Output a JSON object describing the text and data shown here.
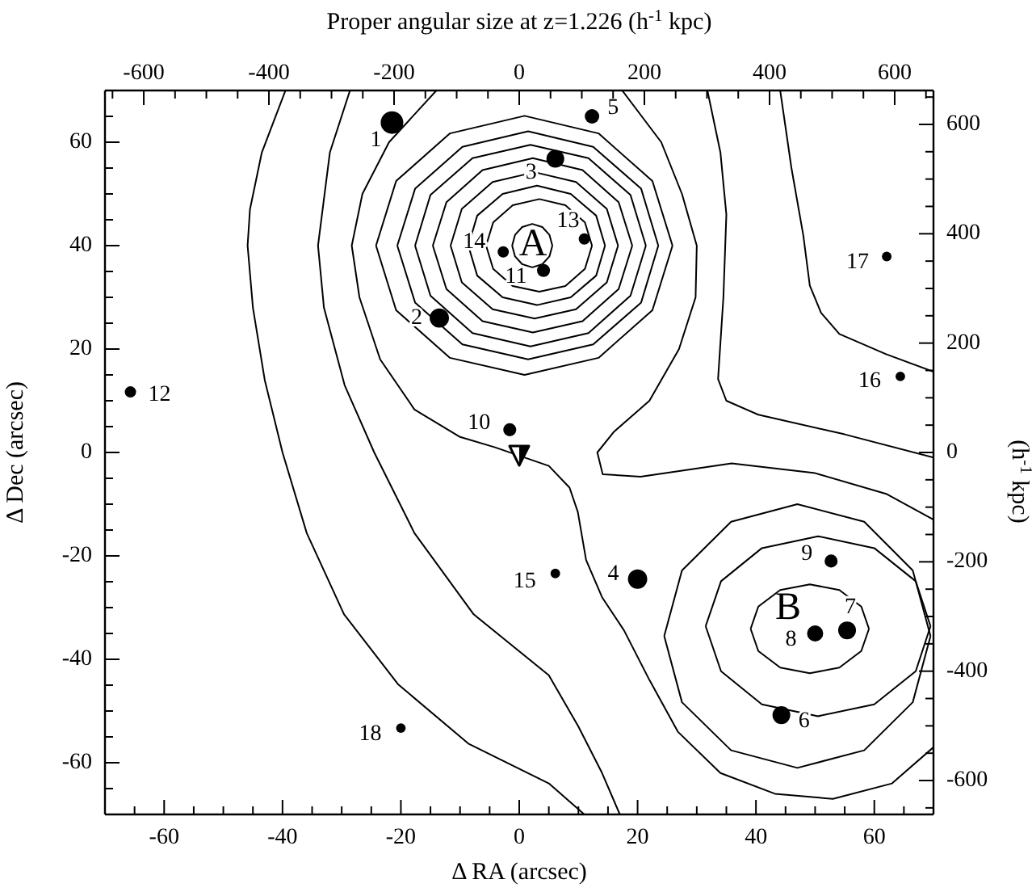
{
  "chart_data": {
    "type": "bubble",
    "xlabel": "Δ RA (arcsec)",
    "ylabel": "Δ Dec (arcsec)",
    "x2label": "Proper angular size at z=1.226 (h$^{-1}$ kpc)",
    "y2label": "(h$^{-1}$ kpc)",
    "xlim": [
      -70,
      70
    ],
    "ylim": [
      -70,
      70
    ],
    "x2lim": [
      -662,
      662
    ],
    "y2lim": [
      -662,
      662
    ],
    "xticks": [
      {
        "value": -65,
        "label": null
      },
      -60,
      {
        "value": -55,
        "label": null
      },
      {
        "value": -50,
        "label": null
      },
      {
        "value": -45,
        "label": null
      },
      -40,
      {
        "value": -35,
        "label": null
      },
      {
        "value": -30,
        "label": null
      },
      {
        "value": -25,
        "label": null
      },
      -20,
      {
        "value": -15,
        "label": null
      },
      {
        "value": -10,
        "label": null
      },
      {
        "value": -5,
        "label": null
      },
      0,
      {
        "value": 5,
        "label": null
      },
      {
        "value": 10,
        "label": null
      },
      {
        "value": 15,
        "label": null
      },
      20,
      {
        "value": 25,
        "label": null
      },
      {
        "value": 30,
        "label": null
      },
      {
        "value": 35,
        "label": null
      },
      40,
      {
        "value": 45,
        "label": null
      },
      {
        "value": 50,
        "label": null
      },
      {
        "value": 55,
        "label": null
      },
      60,
      {
        "value": 65,
        "label": null
      }
    ],
    "yticks": [
      {
        "value": -65,
        "label": null
      },
      -60,
      {
        "value": -55,
        "label": null
      },
      {
        "value": -50,
        "label": null
      },
      {
        "value": -45,
        "label": null
      },
      -40,
      {
        "value": -35,
        "label": null
      },
      {
        "value": -30,
        "label": null
      },
      {
        "value": -25,
        "label": null
      },
      -20,
      {
        "value": -15,
        "label": null
      },
      {
        "value": -10,
        "label": null
      },
      {
        "value": -5,
        "label": null
      },
      0,
      {
        "value": 5,
        "label": null
      },
      {
        "value": 10,
        "label": null
      },
      {
        "value": 15,
        "label": null
      },
      20,
      {
        "value": 25,
        "label": null
      },
      {
        "value": 30,
        "label": null
      },
      {
        "value": 35,
        "label": null
      },
      40,
      {
        "value": 45,
        "label": null
      },
      {
        "value": 50,
        "label": null
      },
      {
        "value": 55,
        "label": null
      },
      60,
      {
        "value": 65,
        "label": null
      }
    ],
    "x2ticks": [
      {
        "value": -650,
        "label": null
      },
      -600,
      {
        "value": -550,
        "label": null
      },
      {
        "value": -500,
        "label": null
      },
      {
        "value": -450,
        "label": null
      },
      -400,
      {
        "value": -350,
        "label": null
      },
      {
        "value": -300,
        "label": null
      },
      {
        "value": -250,
        "label": null
      },
      -200,
      {
        "value": -150,
        "label": null
      },
      {
        "value": -100,
        "label": null
      },
      {
        "value": -50,
        "label": null
      },
      0,
      {
        "value": 50,
        "label": null
      },
      {
        "value": 100,
        "label": null
      },
      {
        "value": 150,
        "label": null
      },
      200,
      {
        "value": 250,
        "label": null
      },
      {
        "value": 300,
        "label": null
      },
      {
        "value": 350,
        "label": null
      },
      400,
      {
        "value": 450,
        "label": null
      },
      {
        "value": 500,
        "label": null
      },
      {
        "value": 550,
        "label": null
      },
      600,
      {
        "value": 650,
        "label": null
      }
    ],
    "y2ticks": [
      {
        "value": -650,
        "label": null
      },
      -600,
      {
        "value": -550,
        "label": null
      },
      {
        "value": -500,
        "label": null
      },
      {
        "value": -450,
        "label": null
      },
      -400,
      {
        "value": -350,
        "label": null
      },
      {
        "value": -300,
        "label": null
      },
      {
        "value": -250,
        "label": null
      },
      -200,
      {
        "value": -150,
        "label": null
      },
      {
        "value": -100,
        "label": null
      },
      {
        "value": -50,
        "label": null
      },
      0,
      {
        "value": 50,
        "label": null
      },
      {
        "value": 100,
        "label": null
      },
      {
        "value": 150,
        "label": null
      },
      200,
      {
        "value": 250,
        "label": null
      },
      {
        "value": 300,
        "label": null
      },
      {
        "value": 350,
        "label": null
      },
      400,
      {
        "value": 450,
        "label": null
      },
      {
        "value": 500,
        "label": null
      },
      {
        "value": 550,
        "label": null
      },
      600,
      {
        "value": 650,
        "label": null
      }
    ],
    "line_style": "solid",
    "series": [
      {
        "type": "line",
        "marker": "none",
        "color": "#000000",
        "x": [
          -1.2,
          -0.7,
          0.5,
          2.2,
          3.9,
          5.1,
          5.6
        ],
        "values": [
          40,
          42.1,
          43.6,
          44.2,
          43.6,
          42.1,
          40
        ]
      },
      {
        "type": "line",
        "marker": "none",
        "color": "#000000",
        "x": [
          -1.2,
          -0.7,
          0.5,
          2.2,
          3.9,
          5.1,
          5.6
        ],
        "values": [
          40,
          37.9,
          36.4,
          35.8,
          36.4,
          37.9,
          40
        ]
      },
      {
        "type": "line",
        "marker": "none",
        "color": "#000000",
        "x": [
          -5.6,
          -4.4,
          -1.1,
          3.4,
          7.8,
          11.1,
          12.3
        ],
        "values": [
          40,
          44.5,
          47.8,
          49.0,
          47.8,
          44.5,
          40
        ]
      },
      {
        "type": "line",
        "marker": "none",
        "color": "#000000",
        "x": [
          -5.6,
          -4.4,
          -1.1,
          3.4,
          7.8,
          11.1,
          12.3
        ],
        "values": [
          40,
          35.5,
          32.2,
          31.1,
          32.2,
          35.5,
          40
        ]
      },
      {
        "type": "line",
        "marker": "none",
        "color": "#000000",
        "x": [
          -8.6,
          -7.1,
          -2.8,
          3.0,
          8.7,
          13.0,
          14.5
        ],
        "values": [
          40,
          45.8,
          50.0,
          51.6,
          50.0,
          45.8,
          40
        ]
      },
      {
        "type": "line",
        "marker": "none",
        "color": "#000000",
        "x": [
          -8.6,
          -7.1,
          -2.8,
          3.0,
          8.7,
          13.0,
          14.5
        ],
        "values": [
          40,
          34.2,
          30.0,
          28.5,
          30.0,
          34.2,
          40
        ]
      },
      {
        "type": "line",
        "marker": "none",
        "color": "#000000",
        "x": [
          -11.6,
          -9.7,
          -4.5,
          2.6,
          9.6,
          14.8,
          16.7
        ],
        "values": [
          40,
          47.1,
          52.3,
          54.2,
          52.3,
          47.1,
          40
        ]
      },
      {
        "type": "line",
        "marker": "none",
        "color": "#000000",
        "x": [
          -11.6,
          -9.7,
          -4.5,
          2.6,
          9.6,
          14.8,
          16.7
        ],
        "values": [
          40,
          32.9,
          27.7,
          25.9,
          27.7,
          32.9,
          40
        ]
      },
      {
        "type": "line",
        "marker": "none",
        "color": "#000000",
        "x": [
          -14.6,
          -12.3,
          -6.2,
          2.3,
          10.7,
          16.8,
          19.1
        ],
        "values": [
          40,
          48.4,
          54.6,
          56.9,
          54.6,
          48.4,
          40
        ]
      },
      {
        "type": "line",
        "marker": "none",
        "color": "#000000",
        "x": [
          -14.6,
          -12.3,
          -6.2,
          2.3,
          10.7,
          16.8,
          19.1
        ],
        "values": [
          40,
          31.6,
          25.4,
          23.2,
          25.4,
          31.6,
          40
        ]
      },
      {
        "type": "line",
        "marker": "none",
        "color": "#000000",
        "x": [
          -17.6,
          -15.0,
          -7.9,
          1.9,
          11.7,
          18.8,
          21.4
        ],
        "values": [
          40,
          49.8,
          56.9,
          59.5,
          56.9,
          49.8,
          40
        ]
      },
      {
        "type": "line",
        "marker": "none",
        "color": "#000000",
        "x": [
          -17.6,
          -15.0,
          -7.9,
          1.9,
          11.7,
          18.8,
          21.4
        ],
        "values": [
          40,
          30.3,
          23.1,
          20.5,
          23.1,
          30.3,
          40
        ]
      },
      {
        "type": "line",
        "marker": "none",
        "color": "#000000",
        "x": [
          -20.6,
          -17.6,
          -9.6,
          1.5,
          12.5,
          20.6,
          23.5
        ],
        "values": [
          40,
          51.0,
          59.1,
          62.1,
          59.1,
          51.0,
          40
        ]
      },
      {
        "type": "line",
        "marker": "none",
        "color": "#000000",
        "x": [
          -20.6,
          -17.6,
          -9.6,
          1.5,
          12.5,
          20.6,
          23.5
        ],
        "values": [
          40,
          29.0,
          20.9,
          18.0,
          20.9,
          29.0,
          40
        ]
      },
      {
        "type": "line",
        "marker": "none",
        "color": "#000000",
        "x": [
          -24.2,
          -20.8,
          -11.7,
          0.9,
          13.4,
          22.5,
          25.9
        ],
        "values": [
          40,
          52.5,
          61.7,
          65.1,
          61.7,
          52.5,
          40
        ]
      },
      {
        "type": "line",
        "marker": "none",
        "color": "#000000",
        "x": [
          -24.2,
          -20.8,
          -11.7,
          0.9,
          13.4,
          22.5,
          25.9
        ],
        "values": [
          40,
          27.5,
          18.3,
          15.0,
          18.3,
          27.5,
          40
        ]
      },
      {
        "type": "line",
        "marker": "none",
        "color": "#000000",
        "x": [
          39.1,
          40.4,
          44.1,
          49.1,
          54.1,
          57.8,
          59.1
        ],
        "values": [
          -34.1,
          -29.8,
          -26.6,
          -25.5,
          -26.6,
          -29.8,
          -34.1
        ]
      },
      {
        "type": "line",
        "marker": "none",
        "color": "#000000",
        "x": [
          39.1,
          40.4,
          44.1,
          49.1,
          54.1,
          57.8,
          59.1
        ],
        "values": [
          -34.1,
          -38.4,
          -41.6,
          -42.7,
          -41.6,
          -38.4,
          -34.1
        ]
      },
      {
        "type": "line",
        "marker": "none",
        "color": "#000000",
        "x": [
          31.5,
          34.1,
          41.0,
          50.5,
          60.0,
          67.0,
          69.5
        ],
        "values": [
          -33.6,
          -24.9,
          -18.5,
          -16.2,
          -18.5,
          -24.9,
          -33.6
        ]
      },
      {
        "type": "line",
        "marker": "none",
        "color": "#000000",
        "x": [
          31.5,
          34.1,
          41.0,
          50.5,
          60.0,
          67.0,
          69.5
        ],
        "values": [
          -33.6,
          -42.3,
          -48.7,
          -51.0,
          -48.7,
          -42.3,
          -33.6
        ]
      },
      {
        "type": "line",
        "marker": "none",
        "color": "#000000",
        "x": [
          24.5,
          27.5,
          35.8,
          47,
          58.3,
          66.5,
          69.5
        ],
        "values": [
          -35.5,
          -22.8,
          -13.4,
          -10,
          -13.4,
          -22.8,
          -35.5
        ]
      },
      {
        "type": "line",
        "marker": "none",
        "color": "#000000",
        "x": [
          24.5,
          27.5,
          35.8,
          47,
          58.3,
          66.5,
          69.5
        ],
        "values": [
          -35.5,
          -48.3,
          -57.6,
          -61,
          -57.6,
          -48.3,
          -35.5
        ]
      },
      {
        "type": "line",
        "marker": "none",
        "color": "#000000",
        "x": [
          -14,
          -22,
          -26.5,
          -28.3,
          -27,
          -23.5,
          -17.7,
          -10,
          -4.1,
          5,
          8.5,
          9.9,
          11.3,
          14,
          17.7,
          22,
          26.8,
          34,
          43.2,
          53,
          63,
          70
        ],
        "values": [
          70,
          60,
          50,
          40,
          30,
          18,
          8.3,
          3,
          1,
          -2.6,
          -6.8,
          -11.5,
          -20.8,
          -28,
          -34.4,
          -44,
          -54,
          -62,
          -66,
          -67,
          -64,
          -57
        ]
      },
      {
        "type": "line",
        "marker": "none",
        "color": "#000000",
        "x": [
          17.4,
          24,
          27.5,
          30,
          29.8,
          27,
          22,
          16,
          13.2,
          14.1,
          20.5,
          35.9,
          50,
          62,
          70
        ],
        "values": [
          70,
          60,
          50,
          40,
          30,
          20,
          10,
          4,
          0,
          -4.2,
          -4.7,
          -2.1,
          -4,
          -8,
          -13
        ]
      },
      {
        "type": "line",
        "marker": "none",
        "color": "#000000",
        "x": [
          31.8,
          34,
          35,
          34.5,
          33.6,
          35,
          40.4,
          55,
          70
        ],
        "values": [
          70,
          58,
          46,
          30,
          14.2,
          10,
          7.3,
          3.5,
          -1
        ]
      },
      {
        "type": "line",
        "marker": "none",
        "color": "#000000",
        "x": [
          44.1,
          46,
          48,
          49.1,
          51,
          54.1,
          62,
          70
        ],
        "values": [
          70,
          55,
          42,
          32.3,
          27,
          22.9,
          19,
          15.6
        ]
      },
      {
        "type": "line",
        "marker": "none",
        "color": "#000000",
        "x": [
          -39.5,
          -43.5,
          -45.5,
          -45.9,
          -45,
          -43,
          -40,
          -35.9,
          -29.6,
          -20.5,
          -8.6,
          5,
          11
        ],
        "values": [
          70,
          58,
          47,
          40,
          28,
          14,
          0,
          -15.6,
          -31.3,
          -44.8,
          -56.3,
          -64,
          -70
        ]
      },
      {
        "type": "line",
        "marker": "none",
        "color": "#000000",
        "x": [
          -28.6,
          -32,
          -34,
          -33,
          -29.5,
          -24.5,
          -17.7,
          -7.7,
          5,
          10,
          14,
          17
        ],
        "values": [
          70,
          58,
          40,
          28,
          13,
          0,
          -15.6,
          -31.3,
          -43.1,
          -53,
          -62,
          -70
        ]
      },
      {
        "type": "scatter",
        "marker": "triangle",
        "color": "#000000",
        "x": [
          0
        ],
        "values": [
          0
        ]
      },
      {
        "marker": "circle",
        "color": "#000000",
        "x": [
          -21.5,
          -13.5,
          6.1,
          20.0,
          12.3,
          44.3,
          55.4,
          50.0,
          52.7,
          -1.6,
          4.1,
          -65.7,
          11.0,
          -2.7,
          6.1,
          64.4,
          62.1,
          -20.0
        ],
        "values": [
          63.8,
          26.0,
          56.8,
          -24.5,
          65.0,
          -50.8,
          -34.4,
          -35.0,
          -21.0,
          4.4,
          35.2,
          11.7,
          41.3,
          38.8,
          -23.4,
          14.7,
          37.9,
          -53.3
        ],
        "sizes": [
          1,
          0.73,
          0.62,
          0.73,
          0.41,
          0.62,
          0.62,
          0.51,
          0.33,
          0.33,
          0.33,
          0.25,
          0.25,
          0.25,
          0.18,
          0.18,
          0.18,
          0.18
        ]
      }
    ],
    "annotations": [
      "A",
      "B",
      {
        "text": "1",
        "x": -21.5,
        "y": 63.8
      },
      {
        "text": "2",
        "x": -13.5,
        "y": 26.0
      },
      {
        "text": "3",
        "x": 6.1,
        "y": 56.8
      },
      {
        "text": "4",
        "x": 20.0,
        "y": -24.5
      },
      {
        "text": "5",
        "x": 12.3,
        "y": 65.0
      },
      {
        "text": "6",
        "x": 44.3,
        "y": -50.8
      },
      {
        "text": "7",
        "x": 55.4,
        "y": -34.4
      },
      {
        "text": "8",
        "x": 50.0,
        "y": -35.0
      },
      {
        "text": "9",
        "x": 52.7,
        "y": -21.0
      },
      {
        "text": "10",
        "x": -1.6,
        "y": 4.4
      },
      {
        "text": "11",
        "x": 4.1,
        "y": 35.2
      },
      {
        "text": "12",
        "x": -65.7,
        "y": 11.7
      },
      {
        "text": "13",
        "x": 11.0,
        "y": 41.3
      },
      {
        "text": "14",
        "x": -2.7,
        "y": 38.8
      },
      {
        "text": "15",
        "x": 6.1,
        "y": -23.4
      },
      {
        "text": "16",
        "x": 64.4,
        "y": 14.7
      },
      {
        "text": "17",
        "x": 62.1,
        "y": 37.9
      },
      {
        "text": "18",
        "x": -20.0,
        "y": -53.3
      }
    ]
  }
}
